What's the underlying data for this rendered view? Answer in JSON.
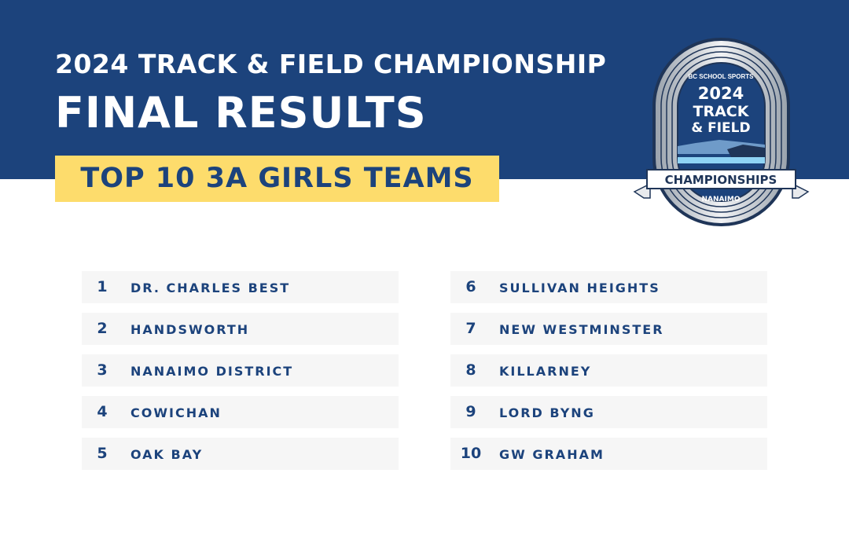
{
  "header": {
    "title": "2024 TRACK & FIELD CHAMPIONSHIP",
    "headline": "FINAL RESULTS",
    "category": "TOP 10 3A GIRLS TEAMS"
  },
  "logo": {
    "org": "BC SCHOOL SPORTS",
    "year": "2024",
    "line1": "TRACK",
    "line2": "& FIELD",
    "ribbon": "CHAMPIONSHIPS",
    "location": "NANAIMO"
  },
  "results": [
    {
      "rank": "1",
      "team": "DR. CHARLES BEST"
    },
    {
      "rank": "2",
      "team": "HANDSWORTH"
    },
    {
      "rank": "3",
      "team": "NANAIMO DISTRICT"
    },
    {
      "rank": "4",
      "team": "COWICHAN"
    },
    {
      "rank": "5",
      "team": "OAK BAY"
    },
    {
      "rank": "6",
      "team": "SULLIVAN HEIGHTS"
    },
    {
      "rank": "7",
      "team": "NEW WESTMINSTER"
    },
    {
      "rank": "8",
      "team": "KILLARNEY"
    },
    {
      "rank": "9",
      "team": "LORD BYNG"
    },
    {
      "rank": "10",
      "team": "GW GRAHAM"
    }
  ],
  "colors": {
    "primary": "#1c437c",
    "accent": "#fddc6c",
    "row": "#f6f6f6"
  }
}
